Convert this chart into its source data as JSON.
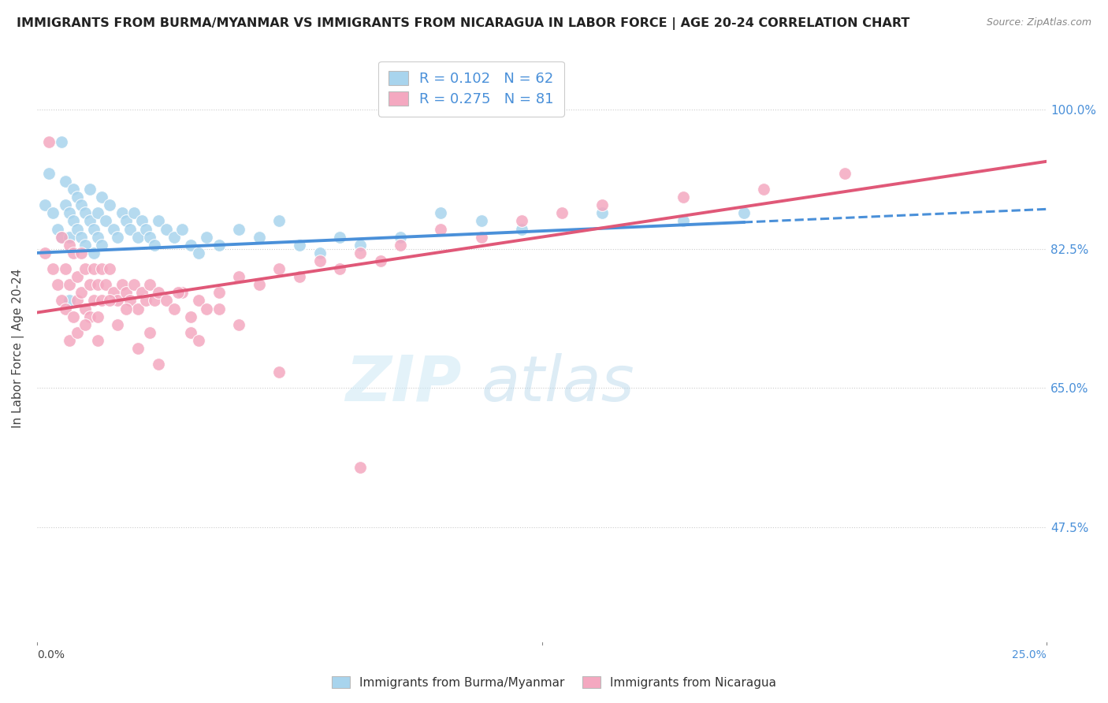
{
  "title": "IMMIGRANTS FROM BURMA/MYANMAR VS IMMIGRANTS FROM NICARAGUA IN LABOR FORCE | AGE 20-24 CORRELATION CHART",
  "source": "Source: ZipAtlas.com",
  "ylabel": "In Labor Force | Age 20-24",
  "ytick_labels": [
    "100.0%",
    "82.5%",
    "65.0%",
    "47.5%"
  ],
  "ytick_values": [
    1.0,
    0.825,
    0.65,
    0.475
  ],
  "xlim": [
    0.0,
    0.25
  ],
  "ylim": [
    0.33,
    1.07
  ],
  "blue_color": "#a8d4ed",
  "pink_color": "#f4a8c0",
  "blue_line_color": "#4a90d9",
  "pink_line_color": "#e05878",
  "R_blue": 0.102,
  "N_blue": 62,
  "R_pink": 0.275,
  "N_pink": 81,
  "legend_label_blue": "Immigrants from Burma/Myanmar",
  "legend_label_pink": "Immigrants from Nicaragua",
  "blue_intercept": 0.82,
  "blue_slope": 0.22,
  "pink_intercept": 0.745,
  "pink_slope": 0.76,
  "blue_x": [
    0.002,
    0.003,
    0.004,
    0.005,
    0.006,
    0.006,
    0.007,
    0.007,
    0.008,
    0.008,
    0.009,
    0.009,
    0.01,
    0.01,
    0.011,
    0.011,
    0.012,
    0.012,
    0.013,
    0.013,
    0.014,
    0.014,
    0.015,
    0.015,
    0.016,
    0.016,
    0.017,
    0.018,
    0.019,
    0.02,
    0.021,
    0.022,
    0.023,
    0.024,
    0.025,
    0.026,
    0.027,
    0.028,
    0.029,
    0.03,
    0.032,
    0.034,
    0.036,
    0.038,
    0.04,
    0.042,
    0.045,
    0.05,
    0.055,
    0.06,
    0.065,
    0.07,
    0.075,
    0.08,
    0.09,
    0.1,
    0.11,
    0.12,
    0.14,
    0.16,
    0.175,
    0.008
  ],
  "blue_y": [
    0.88,
    0.92,
    0.87,
    0.85,
    0.84,
    0.96,
    0.88,
    0.91,
    0.87,
    0.84,
    0.9,
    0.86,
    0.89,
    0.85,
    0.88,
    0.84,
    0.87,
    0.83,
    0.9,
    0.86,
    0.85,
    0.82,
    0.87,
    0.84,
    0.89,
    0.83,
    0.86,
    0.88,
    0.85,
    0.84,
    0.87,
    0.86,
    0.85,
    0.87,
    0.84,
    0.86,
    0.85,
    0.84,
    0.83,
    0.86,
    0.85,
    0.84,
    0.85,
    0.83,
    0.82,
    0.84,
    0.83,
    0.85,
    0.84,
    0.86,
    0.83,
    0.82,
    0.84,
    0.83,
    0.84,
    0.87,
    0.86,
    0.85,
    0.87,
    0.86,
    0.87,
    0.76
  ],
  "pink_x": [
    0.002,
    0.003,
    0.004,
    0.005,
    0.006,
    0.006,
    0.007,
    0.007,
    0.008,
    0.008,
    0.009,
    0.009,
    0.01,
    0.01,
    0.011,
    0.011,
    0.012,
    0.012,
    0.013,
    0.013,
    0.014,
    0.014,
    0.015,
    0.015,
    0.016,
    0.016,
    0.017,
    0.018,
    0.019,
    0.02,
    0.021,
    0.022,
    0.023,
    0.024,
    0.025,
    0.026,
    0.027,
    0.028,
    0.029,
    0.03,
    0.032,
    0.034,
    0.036,
    0.038,
    0.04,
    0.042,
    0.045,
    0.05,
    0.055,
    0.06,
    0.065,
    0.07,
    0.075,
    0.08,
    0.085,
    0.09,
    0.1,
    0.11,
    0.12,
    0.13,
    0.14,
    0.16,
    0.18,
    0.2,
    0.008,
    0.01,
    0.012,
    0.015,
    0.018,
    0.02,
    0.022,
    0.025,
    0.028,
    0.03,
    0.035,
    0.038,
    0.04,
    0.045,
    0.05,
    0.06,
    0.08
  ],
  "pink_y": [
    0.82,
    0.96,
    0.8,
    0.78,
    0.76,
    0.84,
    0.8,
    0.75,
    0.83,
    0.78,
    0.74,
    0.82,
    0.79,
    0.76,
    0.82,
    0.77,
    0.8,
    0.75,
    0.78,
    0.74,
    0.8,
    0.76,
    0.78,
    0.74,
    0.8,
    0.76,
    0.78,
    0.8,
    0.77,
    0.76,
    0.78,
    0.77,
    0.76,
    0.78,
    0.75,
    0.77,
    0.76,
    0.78,
    0.76,
    0.77,
    0.76,
    0.75,
    0.77,
    0.74,
    0.76,
    0.75,
    0.77,
    0.79,
    0.78,
    0.8,
    0.79,
    0.81,
    0.8,
    0.82,
    0.81,
    0.83,
    0.85,
    0.84,
    0.86,
    0.87,
    0.88,
    0.89,
    0.9,
    0.92,
    0.71,
    0.72,
    0.73,
    0.71,
    0.76,
    0.73,
    0.75,
    0.7,
    0.72,
    0.68,
    0.77,
    0.72,
    0.71,
    0.75,
    0.73,
    0.67,
    0.55
  ]
}
